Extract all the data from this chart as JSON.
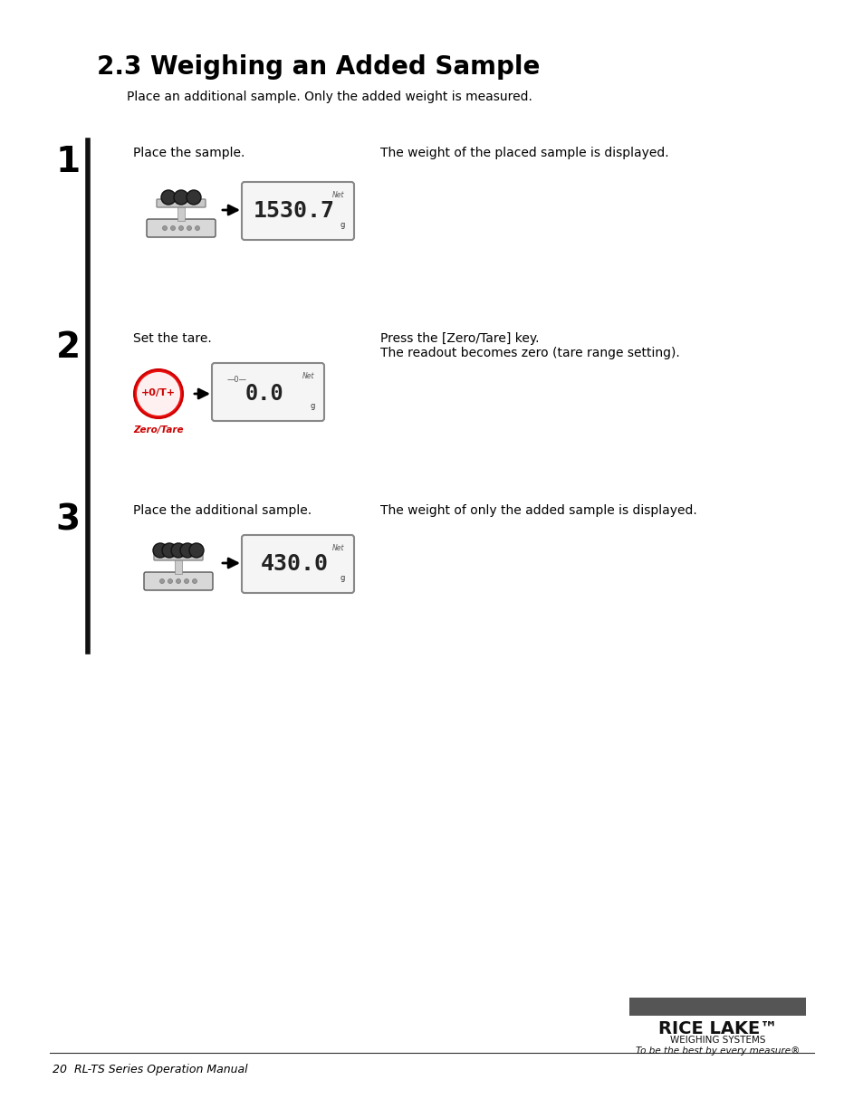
{
  "title": "2.3 Weighing an Added Sample",
  "subtitle": "Place an additional sample. Only the added weight is measured.",
  "step1_label": "1",
  "step1_instruction": "Place the sample.",
  "step1_result": "The weight of the placed sample is displayed.",
  "step1_display": "1530.7",
  "step1_display_unit": "g",
  "step1_display_top": "Net",
  "step2_label": "2",
  "step2_instruction": "Set the tare.",
  "step2_result": "Press the [Zero/Tare] key.",
  "step2_result2": "The readout becomes zero (tare range setting).",
  "step2_button_text": "+0/T+",
  "step2_button_label": "Zero/Tare",
  "step2_display": "0.0",
  "step2_display_top": "Net",
  "step3_label": "3",
  "step3_instruction": "Place the additional sample.",
  "step3_result": "The weight of only the added sample is displayed.",
  "step3_display": "430.0",
  "step3_display_unit": "g",
  "step3_display_top": "Net",
  "footer_left": "20  RL-TS Series Operation Manual",
  "footer_right_line1": "WEIGHING SYSTEMS",
  "footer_right_line2": "To be the best by every measure®",
  "bg_color": "#ffffff",
  "text_color": "#000000",
  "title_color": "#000000",
  "step_number_size": 28,
  "title_fontsize": 20,
  "body_fontsize": 10,
  "footer_fontsize": 9
}
